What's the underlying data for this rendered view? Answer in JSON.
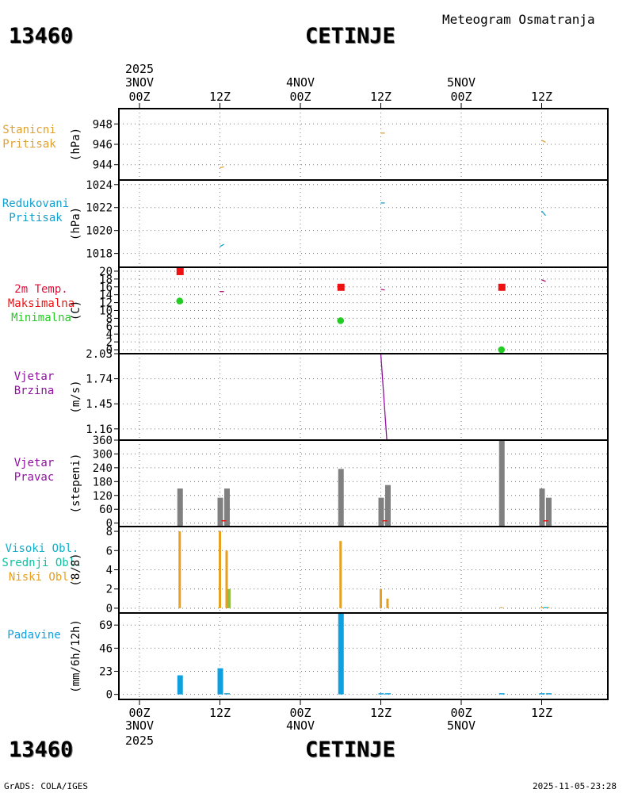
{
  "header": {
    "station_id": "13460",
    "station_name": "CETINJE",
    "product": "Meteogram Osmatranja"
  },
  "footer": {
    "station_id": "13460",
    "station_name": "CETINJE",
    "credit": "GrADS: COLA/IGES",
    "timestamp": "2025-11-05-23:28"
  },
  "time_axis": {
    "year": "2025",
    "ticks": [
      {
        "label": "00Z",
        "date": "3NOV",
        "hour": 0
      },
      {
        "label": "12Z",
        "date": "",
        "hour": 12
      },
      {
        "label": "00Z",
        "date": "4NOV",
        "hour": 24
      },
      {
        "label": "12Z",
        "date": "",
        "hour": 36
      },
      {
        "label": "00Z",
        "date": "5NOV",
        "hour": 48
      },
      {
        "label": "12Z",
        "date": "",
        "hour": 60
      }
    ]
  },
  "colors": {
    "station_pressure": "#e0a030",
    "reduced_pressure": "#10a0d0",
    "temp_label": "#e0103a",
    "tmax": "#ee1111",
    "tmin": "#22cc22",
    "temp_line": "#b01070",
    "wind": "#9010a0",
    "wind_bar": "#808080",
    "high_cloud": "#10b0c8",
    "mid_cloud": "#10c0a0",
    "low_cloud": "#e8a020",
    "precip": "#10a0e0"
  },
  "chart_data": [
    {
      "type": "line",
      "id": "station_pressure",
      "title_lines": [
        "Stanicni",
        "Pritisak"
      ],
      "ylabel": "(hPa)",
      "ylim": [
        942.5,
        949.5
      ],
      "yticks": [
        944,
        946,
        948
      ],
      "series": [
        {
          "name": "Stanicni Pritisak",
          "points": [
            [
              12,
              943.7
            ],
            [
              12.6,
              943.8
            ]
          ]
        },
        {
          "name": "Stanicni Pritisak",
          "points": [
            [
              36,
              947.1
            ],
            [
              36.6,
              947.1
            ]
          ]
        },
        {
          "name": "Stanicni Pritisak",
          "points": [
            [
              60,
              946.4
            ],
            [
              60.6,
              946.2
            ]
          ]
        }
      ]
    },
    {
      "type": "line",
      "id": "reduced_pressure",
      "title_lines": [
        "Redukovani",
        "Pritisak"
      ],
      "ylabel": "(hPa)",
      "ylim": [
        1016.8,
        1024.4
      ],
      "yticks": [
        1018,
        1020,
        1022,
        1024
      ],
      "series": [
        {
          "name": "Redukovani Pritisak",
          "points": [
            [
              12,
              1018.6
            ],
            [
              12.6,
              1018.8
            ]
          ]
        },
        {
          "name": "Redukovani Pritisak",
          "points": [
            [
              36,
              1022.4
            ],
            [
              36.6,
              1022.4
            ]
          ]
        },
        {
          "name": "Redukovani Pritisak",
          "points": [
            [
              60,
              1021.7
            ],
            [
              60.6,
              1021.3
            ]
          ]
        }
      ]
    },
    {
      "type": "scatter",
      "id": "temperature",
      "title_lines": [
        "2m Temp.",
        "Maksimalna",
        "Minimalna"
      ],
      "ylabel": "(C)",
      "ylim": [
        -1,
        21
      ],
      "yticks": [
        0,
        2,
        4,
        6,
        8,
        10,
        12,
        14,
        16,
        18,
        20
      ],
      "tmax": [
        [
          6,
          20
        ],
        [
          30,
          16
        ],
        [
          54,
          16
        ]
      ],
      "tmin": [
        [
          6,
          12.4
        ],
        [
          30,
          7.4
        ],
        [
          54,
          0
        ]
      ],
      "temp_segments": [
        [
          [
            12,
            14.8
          ],
          [
            12.6,
            14.8
          ]
        ],
        [
          [
            36,
            15.4
          ],
          [
            36.6,
            15.2
          ]
        ],
        [
          [
            60,
            17.8
          ],
          [
            60.6,
            17.4
          ]
        ]
      ]
    },
    {
      "type": "line",
      "id": "wind_speed",
      "title_lines": [
        "Vjetar",
        "Brzina"
      ],
      "ylabel": "(m/s)",
      "ylim": [
        1.03,
        2.03
      ],
      "yticks": [
        1.16,
        1.45,
        1.74,
        2.03
      ],
      "series": [
        {
          "name": "Vjetar Brzina",
          "points": [
            [
              12,
              1.03
            ],
            [
              12.6,
              1.03
            ]
          ]
        },
        {
          "name": "Vjetar Brzina",
          "points": [
            [
              36,
              2.03
            ],
            [
              36.9,
              1.03
            ]
          ]
        },
        {
          "name": "Vjetar Brzina",
          "points": [
            [
              60,
              1.03
            ],
            [
              60.6,
              1.03
            ]
          ]
        }
      ]
    },
    {
      "type": "bar",
      "id": "wind_direction",
      "title_lines": [
        "Vjetar",
        "Pravac"
      ],
      "ylabel": "(stepeni)",
      "ylim": [
        -15,
        360
      ],
      "yticks": [
        0,
        60,
        120,
        180,
        240,
        300,
        360
      ],
      "bars": [
        [
          6,
          150
        ],
        [
          12,
          110
        ],
        [
          13,
          150
        ],
        [
          30,
          235
        ],
        [
          36,
          110
        ],
        [
          37,
          165
        ],
        [
          54,
          360
        ],
        [
          60,
          150
        ],
        [
          61,
          110
        ]
      ],
      "base_marks": [
        [
          12.6,
          10
        ],
        [
          36.6,
          10
        ],
        [
          60.6,
          10
        ]
      ]
    },
    {
      "type": "bar",
      "id": "clouds",
      "title_lines": [
        "Visoki Obl.",
        "Srednji Obl.",
        "Niski Obl."
      ],
      "ylabel": "(8/8)",
      "ylim": [
        -0.5,
        8.5
      ],
      "yticks": [
        0,
        2,
        4,
        6,
        8
      ],
      "low": [
        [
          6,
          8
        ],
        [
          12,
          8
        ],
        [
          13,
          6
        ],
        [
          30,
          7
        ],
        [
          36,
          2
        ],
        [
          37,
          1
        ],
        [
          54,
          0.1
        ],
        [
          60,
          0.1
        ],
        [
          61,
          0.1
        ]
      ],
      "mid": [
        [
          13,
          2
        ]
      ],
      "high": [
        [
          60,
          0.1
        ]
      ]
    },
    {
      "type": "bar",
      "id": "precipitation",
      "title_lines": [
        "Padavine"
      ],
      "ylabel": "(mm/6h/12h)",
      "ylim": [
        -5,
        81
      ],
      "yticks": [
        0,
        23,
        46,
        69
      ],
      "bars": [
        [
          6,
          19
        ],
        [
          12,
          26
        ],
        [
          13,
          1
        ],
        [
          30,
          81
        ],
        [
          36,
          1
        ],
        [
          37,
          1
        ],
        [
          54,
          1
        ],
        [
          60,
          1
        ],
        [
          61,
          1
        ]
      ]
    }
  ]
}
